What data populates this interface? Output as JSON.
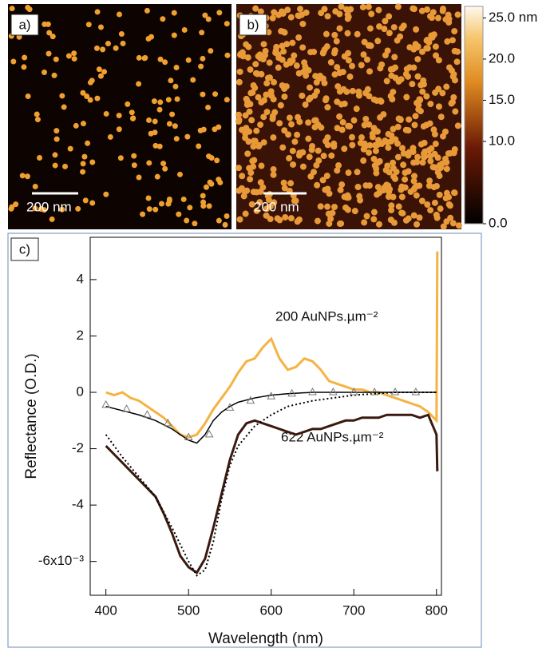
{
  "panels": [
    {
      "label": "a)",
      "scale_bar": "200 nm"
    },
    {
      "label": "b)",
      "scale_bar": "200 nm"
    }
  ],
  "colorbar": {
    "lim": [
      0,
      26.4
    ],
    "ticks": [
      {
        "value": 25,
        "label": "25.0 nm"
      },
      {
        "value": 20,
        "label": "20.0"
      },
      {
        "value": 15,
        "label": "15.0"
      },
      {
        "value": 10,
        "label": "10.0"
      },
      {
        "value": 0,
        "label": "0.0"
      }
    ]
  },
  "chart_data": {
    "type": "line",
    "panel_label": "c)",
    "x_label": "Wavelength (nm)",
    "y_label": "Reflectance (O.D.)",
    "xlim": [
      381,
      806
    ],
    "ylim": [
      -7.2,
      5.5
    ],
    "xticks": [
      400,
      500,
      600,
      700,
      800
    ],
    "yticks": [
      {
        "value": -6,
        "label": "-6x10⁻³"
      },
      -4,
      -2,
      0,
      2,
      4
    ],
    "annotations": [
      "200 AuNPs.µm⁻²",
      "622 AuNPs.µm⁻²"
    ],
    "series": [
      {
        "color": "#f5b342",
        "x": [
          400,
          410,
          420,
          430,
          440,
          450,
          460,
          470,
          480,
          490,
          500,
          510,
          520,
          530,
          540,
          550,
          560,
          570,
          580,
          590,
          600,
          610,
          620,
          630,
          640,
          650,
          660,
          670,
          680,
          690,
          700,
          710,
          720,
          730,
          740,
          750,
          760,
          770,
          780,
          790,
          800,
          801
        ],
        "values": [
          0,
          -0.1,
          0,
          -0.2,
          -0.3,
          -0.5,
          -0.7,
          -0.9,
          -1.2,
          -1.5,
          -1.6,
          -1.5,
          -1.1,
          -0.6,
          -0.2,
          0.2,
          0.7,
          1.1,
          1.2,
          1.6,
          1.9,
          1.2,
          0.8,
          0.9,
          1.2,
          1.1,
          0.8,
          0.4,
          0.3,
          0.2,
          0.1,
          0.1,
          0,
          0,
          -0.1,
          -0.2,
          -0.3,
          -0.4,
          -0.5,
          -0.7,
          -1,
          5
        ]
      },
      {
        "color": "#3a1a10",
        "x": [
          400,
          410,
          420,
          430,
          440,
          450,
          460,
          470,
          480,
          490,
          500,
          510,
          520,
          530,
          540,
          550,
          560,
          570,
          580,
          590,
          600,
          610,
          620,
          630,
          640,
          650,
          660,
          670,
          680,
          690,
          700,
          710,
          720,
          730,
          740,
          750,
          760,
          770,
          780,
          790,
          800,
          801
        ],
        "values": [
          -1.9,
          -2.2,
          -2.5,
          -2.8,
          -3.1,
          -3.4,
          -3.7,
          -4.3,
          -5.0,
          -5.8,
          -6.2,
          -6.4,
          -5.9,
          -4.8,
          -3.6,
          -2.4,
          -1.5,
          -1.1,
          -1.0,
          -1.1,
          -1.2,
          -1.3,
          -1.4,
          -1.5,
          -1.4,
          -1.3,
          -1.3,
          -1.2,
          -1.1,
          -1.0,
          -1.0,
          -0.9,
          -0.9,
          -0.9,
          -0.8,
          -0.8,
          -0.8,
          -0.8,
          -0.9,
          -0.8,
          -1.5,
          -2.8
        ]
      },
      {
        "color": "#000000",
        "x": [
          400,
          420,
          440,
          460,
          480,
          500,
          510,
          520,
          530,
          540,
          550,
          560,
          580,
          600,
          620,
          650,
          700,
          750,
          800
        ],
        "values": [
          -0.5,
          -0.65,
          -0.8,
          -1.0,
          -1.3,
          -1.7,
          -1.8,
          -1.5,
          -1.0,
          -0.7,
          -0.5,
          -0.35,
          -0.2,
          -0.1,
          -0.05,
          0,
          0,
          0,
          0
        ]
      },
      {
        "color": "#000000",
        "dash": "dotted",
        "x": [
          400,
          420,
          440,
          460,
          480,
          500,
          510,
          520,
          530,
          540,
          550,
          560,
          580,
          600,
          620,
          650,
          700,
          750,
          800
        ],
        "values": [
          -1.5,
          -2.3,
          -3.0,
          -3.7,
          -4.8,
          -6.0,
          -6.5,
          -6.3,
          -5.3,
          -3.8,
          -2.6,
          -1.9,
          -1.2,
          -0.8,
          -0.5,
          -0.3,
          -0.1,
          0,
          0
        ]
      },
      {
        "color": "#777777",
        "marker": "triangle",
        "x": [
          400,
          425,
          450,
          475,
          500,
          525,
          550,
          575,
          600,
          625,
          650,
          675,
          700,
          725,
          750,
          775
        ],
        "values": [
          -0.45,
          -0.6,
          -0.8,
          -1.1,
          -1.6,
          -1.5,
          -0.55,
          -0.3,
          -0.15,
          -0.05,
          0,
          0,
          0,
          0,
          0,
          0
        ]
      }
    ]
  }
}
